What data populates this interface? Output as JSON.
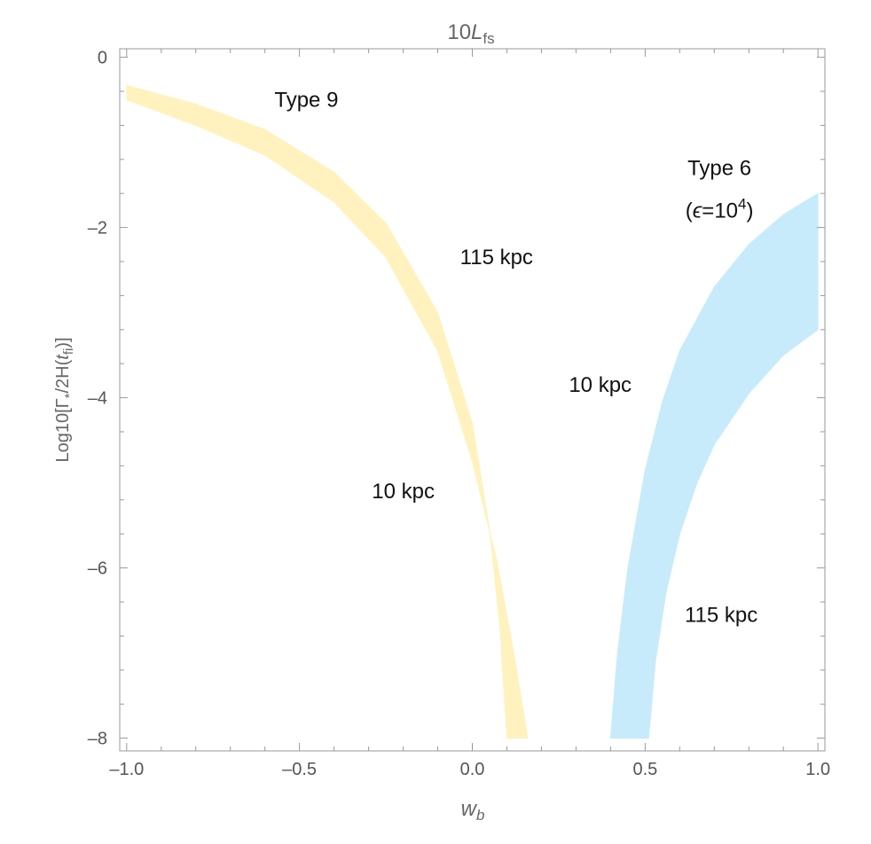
{
  "chart_data": {
    "type": "area",
    "title": "10L_fs",
    "title_parts": {
      "prefix": "10",
      "main": "L",
      "sub": "fs"
    },
    "xlabel": "w_b",
    "xlabel_parts": {
      "main": "w",
      "sub": "b"
    },
    "ylabel": "Log10[Γ*/2H(tfi)]",
    "ylabel_parts": {
      "a": "Log10[Γ",
      "b": "*",
      "c": "/2H(",
      "d": "t",
      "e": "fi",
      "f": ")]"
    },
    "xlim": [
      -1.02,
      1.02
    ],
    "ylim": [
      -8.15,
      0.1
    ],
    "x_ticks": [
      -1.0,
      -0.5,
      0.0,
      0.5,
      1.0
    ],
    "x_tick_labels": [
      "-1.0",
      "-0.5",
      "0.0",
      "0.5",
      "1.0"
    ],
    "y_ticks": [
      0,
      -2,
      -4,
      -6,
      -8
    ],
    "y_tick_labels": [
      "0",
      "-2",
      "-4",
      "-6",
      "-8"
    ],
    "grid": false,
    "frame_ticks": "all-sides",
    "series": [
      {
        "color": "#fff2be",
        "upper": {
          "x": [
            -1.0,
            -0.8,
            -0.6,
            -0.4,
            -0.25,
            -0.1,
            0.0,
            0.05,
            0.08,
            0.1
          ],
          "y": [
            -0.33,
            -0.55,
            -0.85,
            -1.35,
            -1.95,
            -3.0,
            -4.3,
            -5.55,
            -6.7,
            -8.0
          ]
        },
        "lower": {
          "x": [
            -1.0,
            -0.8,
            -0.6,
            -0.4,
            -0.25,
            -0.1,
            0.0,
            0.07,
            0.12,
            0.16
          ],
          "y": [
            -0.5,
            -0.8,
            -1.15,
            -1.7,
            -2.35,
            -3.45,
            -4.75,
            -5.9,
            -7.0,
            -8.0
          ]
        }
      },
      {
        "color": "#c8ebfb",
        "upper": {
          "x": [
            0.4,
            0.42,
            0.45,
            0.5,
            0.55,
            0.6,
            0.7,
            0.8,
            0.9,
            1.0
          ],
          "y": [
            -8.0,
            -7.0,
            -6.0,
            -4.85,
            -4.05,
            -3.45,
            -2.7,
            -2.2,
            -1.85,
            -1.6
          ]
        },
        "lower": {
          "x": [
            0.51,
            0.53,
            0.56,
            0.6,
            0.65,
            0.7,
            0.8,
            0.9,
            1.0
          ],
          "y": [
            -8.0,
            -7.1,
            -6.3,
            -5.6,
            -5.0,
            -4.55,
            -3.95,
            -3.5,
            -3.2
          ]
        }
      }
    ],
    "annotations": [
      {
        "text": "Type 9",
        "x": -0.48,
        "y": -0.5
      },
      {
        "text": "115 kpc",
        "x": 0.07,
        "y": -2.35
      },
      {
        "text": "10 kpc",
        "x": -0.2,
        "y": -5.1
      },
      {
        "text": "Type 6",
        "x": 0.715,
        "y": -1.3
      },
      {
        "text": "(ϵ=10⁴)",
        "x": 0.715,
        "y": -1.8,
        "parts": {
          "open": "(",
          "eps": "ϵ",
          "eq": "=10",
          "sup": "4",
          "close": ")"
        }
      },
      {
        "text": "10 kpc",
        "x": 0.37,
        "y": -3.85
      },
      {
        "text": "115 kpc",
        "x": 0.72,
        "y": -6.55
      }
    ]
  }
}
